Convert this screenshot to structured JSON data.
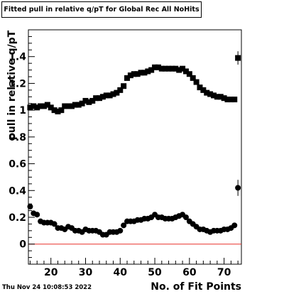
{
  "footer_date": "Thu Nov 24 10:08:53 2022",
  "chart_data": {
    "type": "scatter",
    "title": "Fitted pull in relative q/pT for Global Rec All NoHits",
    "xlabel": "No. of Fit Points",
    "ylabel": "pull in relative q/pT",
    "xlim": [
      13.5,
      75
    ],
    "ylim": [
      -0.15,
      1.6
    ],
    "x_ticks": [
      20,
      30,
      40,
      50,
      60,
      70
    ],
    "y_ticks": [
      0,
      0.2,
      0.4,
      0.6,
      0.8,
      1,
      1.2,
      1.4
    ],
    "y_tick_labels": [
      "0",
      "0.2",
      "0.4",
      "0.6",
      "0.8",
      "1",
      "1.2",
      "1.4"
    ],
    "grid": false,
    "reference_line": {
      "y": 0,
      "color": "#e8302a"
    },
    "series": [
      {
        "marker": "square",
        "color": "#000000",
        "x": [
          14,
          15,
          16,
          17,
          18,
          19,
          20,
          21,
          22,
          23,
          24,
          25,
          26,
          27,
          28,
          29,
          30,
          31,
          32,
          33,
          34,
          35,
          36,
          37,
          38,
          39,
          40,
          41,
          42,
          43,
          44,
          45,
          46,
          47,
          48,
          49,
          50,
          51,
          52,
          53,
          54,
          55,
          56,
          57,
          58,
          59,
          60,
          61,
          62,
          63,
          64,
          65,
          66,
          67,
          68,
          69,
          70,
          71,
          72,
          73,
          74
        ],
        "y": [
          1.02,
          1.03,
          1.02,
          1.03,
          1.03,
          1.04,
          1.02,
          1.0,
          0.99,
          1.0,
          1.03,
          1.03,
          1.03,
          1.04,
          1.04,
          1.05,
          1.07,
          1.06,
          1.07,
          1.09,
          1.09,
          1.1,
          1.11,
          1.11,
          1.12,
          1.13,
          1.15,
          1.18,
          1.24,
          1.26,
          1.27,
          1.27,
          1.28,
          1.28,
          1.29,
          1.3,
          1.32,
          1.32,
          1.31,
          1.31,
          1.31,
          1.31,
          1.31,
          1.3,
          1.31,
          1.29,
          1.27,
          1.24,
          1.21,
          1.17,
          1.15,
          1.13,
          1.12,
          1.11,
          1.1,
          1.1,
          1.09,
          1.08,
          1.08,
          1.08,
          1.39
        ],
        "y_err": [
          0,
          0,
          0,
          0,
          0,
          0,
          0,
          0,
          0,
          0,
          0,
          0,
          0,
          0,
          0,
          0,
          0,
          0,
          0,
          0,
          0,
          0,
          0,
          0,
          0,
          0,
          0,
          0,
          0,
          0,
          0,
          0,
          0,
          0,
          0,
          0,
          0,
          0,
          0,
          0,
          0,
          0,
          0,
          0,
          0,
          0,
          0,
          0,
          0,
          0,
          0,
          0,
          0,
          0,
          0,
          0,
          0,
          0,
          0,
          0,
          0.05
        ]
      },
      {
        "marker": "circle",
        "color": "#000000",
        "x": [
          14,
          15,
          16,
          17,
          18,
          19,
          20,
          21,
          22,
          23,
          24,
          25,
          26,
          27,
          28,
          29,
          30,
          31,
          32,
          33,
          34,
          35,
          36,
          37,
          38,
          39,
          40,
          41,
          42,
          43,
          44,
          45,
          46,
          47,
          48,
          49,
          50,
          51,
          52,
          53,
          54,
          55,
          56,
          57,
          58,
          59,
          60,
          61,
          62,
          63,
          64,
          65,
          66,
          67,
          68,
          69,
          70,
          71,
          72,
          73,
          74
        ],
        "y": [
          0.28,
          0.23,
          0.22,
          0.17,
          0.16,
          0.16,
          0.16,
          0.15,
          0.12,
          0.12,
          0.11,
          0.13,
          0.12,
          0.1,
          0.1,
          0.09,
          0.11,
          0.1,
          0.1,
          0.1,
          0.09,
          0.07,
          0.07,
          0.09,
          0.09,
          0.09,
          0.1,
          0.14,
          0.17,
          0.17,
          0.17,
          0.18,
          0.18,
          0.19,
          0.19,
          0.2,
          0.22,
          0.2,
          0.2,
          0.19,
          0.19,
          0.19,
          0.2,
          0.21,
          0.22,
          0.2,
          0.17,
          0.15,
          0.13,
          0.11,
          0.11,
          0.1,
          0.09,
          0.1,
          0.1,
          0.1,
          0.11,
          0.11,
          0.12,
          0.14,
          0.42
        ],
        "y_err": [
          0,
          0,
          0,
          0,
          0,
          0,
          0,
          0,
          0,
          0,
          0,
          0,
          0,
          0,
          0,
          0,
          0,
          0,
          0,
          0,
          0,
          0,
          0,
          0,
          0,
          0,
          0,
          0,
          0,
          0,
          0,
          0,
          0,
          0,
          0,
          0,
          0,
          0,
          0,
          0,
          0,
          0,
          0,
          0,
          0,
          0,
          0,
          0,
          0,
          0,
          0,
          0,
          0,
          0,
          0,
          0,
          0,
          0,
          0,
          0,
          0.06
        ]
      }
    ]
  }
}
